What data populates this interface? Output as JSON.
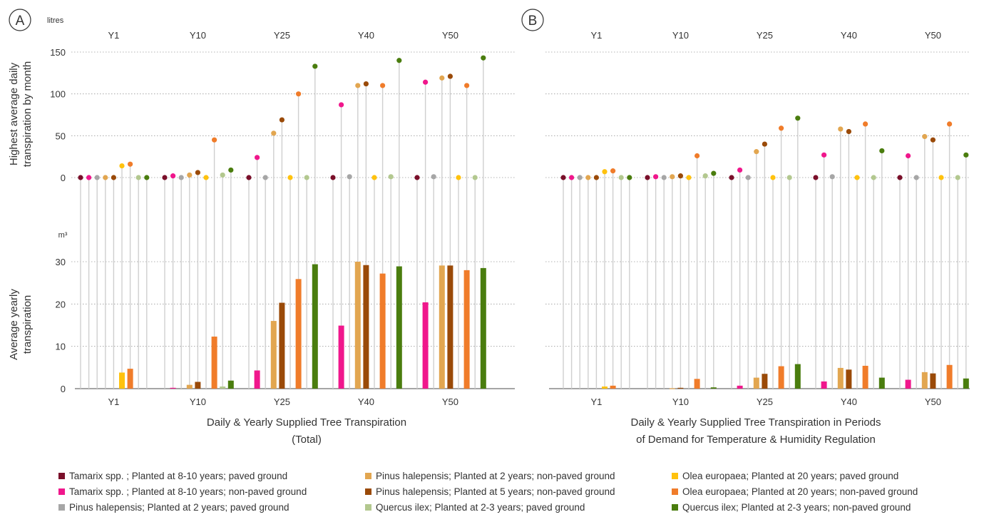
{
  "panel_labels": [
    "A",
    "B"
  ],
  "legend": [
    {
      "label": "Tamarix spp. ; Planted at 8-10 years;  paved ground",
      "color": "#7a0f2a"
    },
    {
      "label": "Tamarix spp. ; Planted at 8-10 years;  non-paved ground",
      "color": "#f0178c"
    },
    {
      "label": "Pinus halepensis; Planted at 2 years;  paved ground",
      "color": "#a6a6a6"
    },
    {
      "label": "Pinus halepensis; Planted at 2 years;  non-paved ground",
      "color": "#e2a650"
    },
    {
      "label": "Pinus halepensis; Planted at 5 years;  non-paved ground",
      "color": "#9a4a08"
    },
    {
      "label": "Quercus ilex; Planted at 2-3 years;  paved ground",
      "color": "#b3c88f"
    },
    {
      "label": "Olea europaea; Planted at 20 years;  paved ground",
      "color": "#ffc20e"
    },
    {
      "label": "Olea europaea; Planted at 20 years;  non-paved ground",
      "color": "#f07c2a"
    },
    {
      "label": "Quercus ilex; Planted at 2-3 years;  non-paved ground",
      "color": "#4a7d0e"
    }
  ],
  "chart_data": [
    {
      "panel": "A",
      "type": "lollipop + bar",
      "title_line1": "Daily & Yearly Supplied Tree Transpiration",
      "title_line2": "(Total)",
      "categories": [
        "Y1",
        "Y10",
        "Y25",
        "Y40",
        "Y50"
      ],
      "series_order": [
        "Tamarix spp. ; Planted at 8-10 years;  paved ground",
        "Tamarix spp. ; Planted at 8-10 years;  non-paved ground",
        "Pinus halepensis; Planted at 2 years;  paved ground",
        "Pinus halepensis; Planted at 2 years;  non-paved ground",
        "Pinus halepensis; Planted at 5 years;  non-paved ground",
        "Olea europaea; Planted at 20 years;  paved ground",
        "Olea europaea; Planted at 20 years;  non-paved ground",
        "Quercus ilex; Planted at 2-3 years;  paved ground",
        "Quercus ilex; Planted at 2-3 years;  non-paved ground"
      ],
      "daily": {
        "ylabel_line1": "Highest average daily",
        "ylabel_line2": "transpiration by month",
        "unit": "litres",
        "ylim": [
          0,
          150
        ],
        "yticks": [
          0,
          50,
          100,
          150
        ],
        "values": [
          [
            0,
            0,
            0,
            0,
            0,
            14,
            16,
            0,
            0
          ],
          [
            0,
            2,
            0,
            3,
            6,
            0,
            45,
            3,
            9
          ],
          [
            0,
            24,
            0,
            53,
            69,
            0,
            100,
            0,
            133
          ],
          [
            0,
            87,
            1,
            110,
            112,
            0,
            110,
            1,
            140
          ],
          [
            0,
            114,
            1,
            119,
            121,
            0,
            110,
            0,
            143
          ]
        ]
      },
      "yearly": {
        "ylabel_line1": "Average yearly",
        "ylabel_line2": "transpiration",
        "unit": "m³",
        "ylim": [
          0,
          30
        ],
        "yticks": [
          0,
          10,
          20,
          30
        ],
        "values": [
          [
            0,
            0,
            0,
            0,
            0,
            3.8,
            4.7,
            0,
            0
          ],
          [
            0,
            0.2,
            0,
            0.9,
            1.6,
            0,
            12.3,
            0.5,
            1.9
          ],
          [
            0,
            4.3,
            0,
            16.0,
            20.3,
            0,
            25.9,
            0,
            29.4
          ],
          [
            0,
            14.9,
            0,
            30.0,
            29.2,
            0,
            27.2,
            0,
            28.9
          ],
          [
            0,
            20.4,
            0,
            29.1,
            29.1,
            0,
            28.0,
            0,
            28.5
          ]
        ]
      }
    },
    {
      "panel": "B",
      "type": "lollipop + bar",
      "title_line1": "Daily & Yearly Supplied Tree Transpiration in Periods",
      "title_line2": "of Demand for Temperature & Humidity Regulation",
      "categories": [
        "Y1",
        "Y10",
        "Y25",
        "Y40",
        "Y50"
      ],
      "daily": {
        "ylim": [
          0,
          150
        ],
        "values": [
          [
            0,
            0,
            0,
            0,
            0,
            7,
            8,
            0,
            0
          ],
          [
            0,
            1,
            0,
            1,
            2,
            0,
            26,
            2,
            5
          ],
          [
            0,
            9,
            0,
            31,
            40,
            0,
            59,
            0,
            71
          ],
          [
            0,
            27,
            1,
            58,
            55,
            0,
            64,
            0,
            32
          ],
          [
            0,
            26,
            0,
            49,
            45,
            0,
            64,
            0,
            27
          ]
        ]
      },
      "yearly": {
        "ylim": [
          0,
          30
        ],
        "values": [
          [
            0,
            0,
            0,
            0,
            0,
            0.5,
            0.7,
            0,
            0
          ],
          [
            0,
            0,
            0,
            0.1,
            0.2,
            0,
            2.3,
            0,
            0.3
          ],
          [
            0,
            0.7,
            0,
            2.6,
            3.5,
            0,
            5.3,
            0,
            5.8
          ],
          [
            0,
            1.7,
            0,
            4.9,
            4.5,
            0,
            5.4,
            0,
            2.6
          ],
          [
            0,
            2.1,
            0,
            3.9,
            3.6,
            0,
            5.6,
            0,
            2.4
          ]
        ]
      }
    }
  ]
}
